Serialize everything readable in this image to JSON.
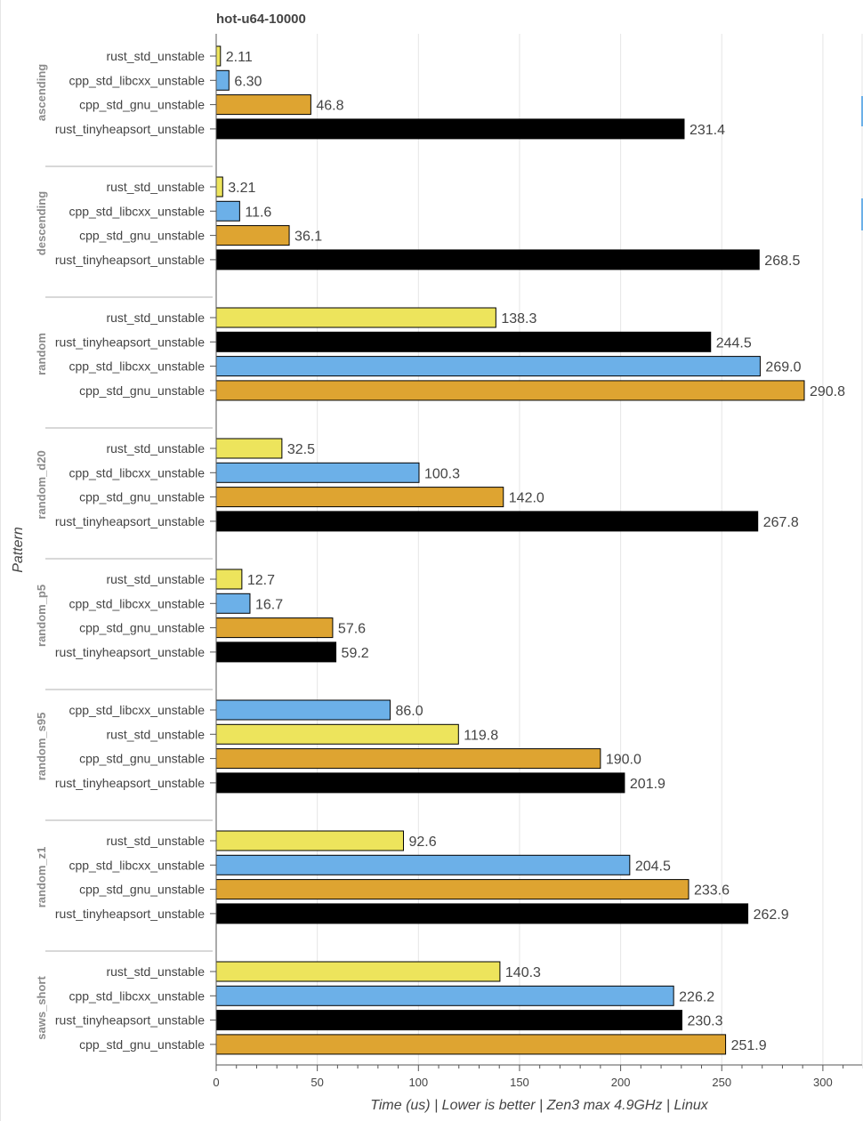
{
  "chart_data": {
    "type": "bar",
    "orientation": "horizontal",
    "title": "hot-u64-10000",
    "xlabel": "Time (us) | Lower is better | Zen3 max 4.9GHz | Linux",
    "ylabel": "Pattern",
    "xlim": [
      0,
      320
    ],
    "xticks": [
      0,
      50,
      100,
      150,
      200,
      250,
      300
    ],
    "grid": true,
    "colors": {
      "rust_std_unstable": "#ede45c",
      "cpp_std_libcxx_unstable": "#6cb0e8",
      "cpp_std_gnu_unstable": "#dea431",
      "rust_tinyheapsort_unstable": "#000000"
    },
    "groups": [
      {
        "name": "ascending",
        "bars": [
          {
            "series": "rust_std_unstable",
            "value": 2.11,
            "label": "2.11"
          },
          {
            "series": "cpp_std_libcxx_unstable",
            "value": 6.3,
            "label": "6.30"
          },
          {
            "series": "cpp_std_gnu_unstable",
            "value": 46.8,
            "label": "46.8"
          },
          {
            "series": "rust_tinyheapsort_unstable",
            "value": 231.4,
            "label": "231.4"
          }
        ]
      },
      {
        "name": "descending",
        "bars": [
          {
            "series": "rust_std_unstable",
            "value": 3.21,
            "label": "3.21"
          },
          {
            "series": "cpp_std_libcxx_unstable",
            "value": 11.6,
            "label": "11.6"
          },
          {
            "series": "cpp_std_gnu_unstable",
            "value": 36.1,
            "label": "36.1"
          },
          {
            "series": "rust_tinyheapsort_unstable",
            "value": 268.5,
            "label": "268.5"
          }
        ]
      },
      {
        "name": "random",
        "bars": [
          {
            "series": "rust_std_unstable",
            "value": 138.3,
            "label": "138.3"
          },
          {
            "series": "rust_tinyheapsort_unstable",
            "value": 244.5,
            "label": "244.5"
          },
          {
            "series": "cpp_std_libcxx_unstable",
            "value": 269.0,
            "label": "269.0"
          },
          {
            "series": "cpp_std_gnu_unstable",
            "value": 290.8,
            "label": "290.8"
          }
        ]
      },
      {
        "name": "random_d20",
        "bars": [
          {
            "series": "rust_std_unstable",
            "value": 32.5,
            "label": "32.5"
          },
          {
            "series": "cpp_std_libcxx_unstable",
            "value": 100.3,
            "label": "100.3"
          },
          {
            "series": "cpp_std_gnu_unstable",
            "value": 142.0,
            "label": "142.0"
          },
          {
            "series": "rust_tinyheapsort_unstable",
            "value": 267.8,
            "label": "267.8"
          }
        ]
      },
      {
        "name": "random_p5",
        "bars": [
          {
            "series": "rust_std_unstable",
            "value": 12.7,
            "label": "12.7"
          },
          {
            "series": "cpp_std_libcxx_unstable",
            "value": 16.7,
            "label": "16.7"
          },
          {
            "series": "cpp_std_gnu_unstable",
            "value": 57.6,
            "label": "57.6"
          },
          {
            "series": "rust_tinyheapsort_unstable",
            "value": 59.2,
            "label": "59.2"
          }
        ]
      },
      {
        "name": "random_s95",
        "bars": [
          {
            "series": "cpp_std_libcxx_unstable",
            "value": 86.0,
            "label": "86.0"
          },
          {
            "series": "rust_std_unstable",
            "value": 119.8,
            "label": "119.8"
          },
          {
            "series": "cpp_std_gnu_unstable",
            "value": 190.0,
            "label": "190.0"
          },
          {
            "series": "rust_tinyheapsort_unstable",
            "value": 201.9,
            "label": "201.9"
          }
        ]
      },
      {
        "name": "random_z1",
        "bars": [
          {
            "series": "rust_std_unstable",
            "value": 92.6,
            "label": "92.6"
          },
          {
            "series": "cpp_std_libcxx_unstable",
            "value": 204.5,
            "label": "204.5"
          },
          {
            "series": "cpp_std_gnu_unstable",
            "value": 233.6,
            "label": "233.6"
          },
          {
            "series": "rust_tinyheapsort_unstable",
            "value": 262.9,
            "label": "262.9"
          }
        ]
      },
      {
        "name": "saws_short",
        "bars": [
          {
            "series": "rust_std_unstable",
            "value": 140.3,
            "label": "140.3"
          },
          {
            "series": "cpp_std_libcxx_unstable",
            "value": 226.2,
            "label": "226.2"
          },
          {
            "series": "rust_tinyheapsort_unstable",
            "value": 230.3,
            "label": "230.3"
          },
          {
            "series": "cpp_std_gnu_unstable",
            "value": 251.9,
            "label": "251.9"
          }
        ]
      }
    ]
  }
}
